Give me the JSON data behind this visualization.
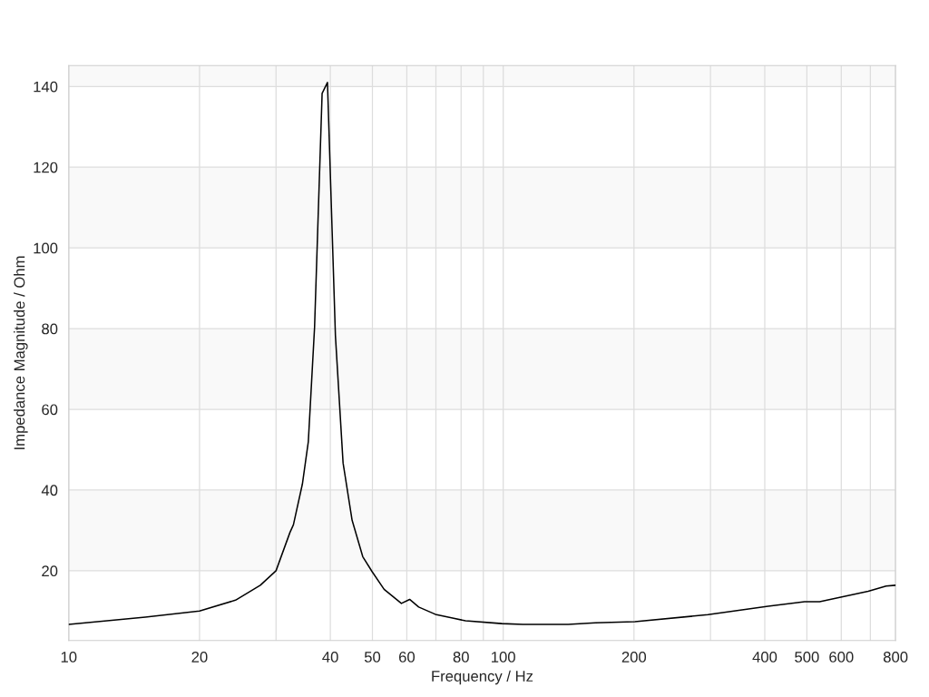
{
  "chart_data": {
    "type": "line",
    "xlabel": "Frequency / Hz",
    "ylabel": "Impedance Magnitude / Ohm",
    "log": "x",
    "grid": true,
    "x": [
      10,
      15.0,
      20,
      24.2,
      27.6,
      30,
      32.3,
      32.9,
      34.5,
      35.6,
      36.8,
      38.3,
      39.4,
      41.1,
      42.8,
      44.9,
      47.5,
      49.9,
      53.2,
      58.3,
      60.9,
      63.9,
      69.8,
      76.9,
      81.9,
      99.3,
      111,
      141,
      163,
      201,
      296,
      407,
      494,
      535,
      692,
      761,
      800
    ],
    "series": [
      {
        "color": "#000000",
        "values": [
          6.7,
          8.5,
          10.0,
          12.7,
          16.4,
          20.0,
          29.5,
          31.4,
          41.5,
          52,
          80.4,
          138.3,
          141.0,
          78.2,
          46.7,
          32.5,
          23.5,
          19.8,
          15.4,
          11.9,
          12.9,
          11.0,
          9.2,
          8.2,
          7.6,
          6.9,
          6.7,
          6.7,
          7.1,
          7.4,
          9.1,
          11.2,
          12.3,
          12.3,
          14.9,
          16.2,
          16.4
        ]
      }
    ],
    "xlim": [
      10,
      800
    ],
    "ylim": [
      2.7,
      145.2
    ],
    "xticks": [
      10,
      20,
      {
        "value": 30,
        "label": null
      },
      40,
      50,
      60,
      {
        "value": 70,
        "label": null
      },
      80,
      {
        "value": 90,
        "label": null
      },
      100,
      200,
      {
        "value": 300,
        "label": null
      },
      400,
      500,
      600,
      {
        "value": 700,
        "label": null
      },
      800
    ],
    "yticks": [
      20,
      40,
      60,
      80,
      100,
      120,
      140
    ],
    "bands": [
      {
        "axis": "y",
        "from": 20,
        "to": 40,
        "color": "#f9f9f9"
      },
      {
        "axis": "y",
        "from": 60,
        "to": 80,
        "color": "#f9f9f9"
      },
      {
        "axis": "y",
        "from": 100,
        "to": 120,
        "color": "#f9f9f9"
      },
      {
        "axis": "y",
        "from": 140,
        "to": 145.2,
        "color": "#f9f9f9"
      }
    ],
    "marker": "none",
    "line_style": "solid",
    "legend": false
  }
}
